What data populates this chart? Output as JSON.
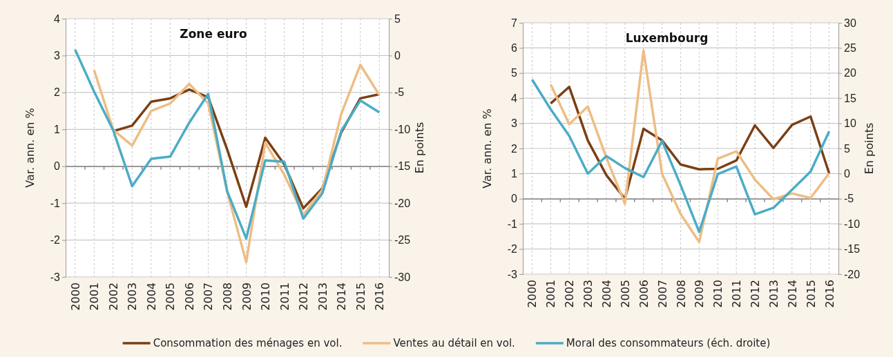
{
  "chart_data": [
    {
      "type": "line",
      "title": "Zone euro",
      "ylabel": "Var. ann. en %",
      "y2label": "En points",
      "categories": [
        "2000",
        "2001",
        "2002",
        "2003",
        "2004",
        "2005",
        "2006",
        "2007",
        "2008",
        "2009",
        "2010",
        "2011",
        "2012",
        "2013",
        "2014",
        "2015",
        "2016"
      ],
      "ylim": [
        -3,
        4
      ],
      "yticks": [
        -3,
        -2,
        -1,
        0,
        1,
        2,
        3,
        4
      ],
      "y2lim": [
        -30,
        5
      ],
      "y2ticks": [
        -30,
        -25,
        -20,
        -15,
        -10,
        -5,
        0,
        5
      ],
      "grid": true,
      "legend": "bottom",
      "line_style": "solid",
      "series": [
        {
          "name": "Consommation des ménages en vol.",
          "color": "#7b3f14",
          "values": [
            null,
            null,
            0.95,
            1.1,
            1.75,
            1.84,
            2.08,
            1.87,
            0.45,
            -1.1,
            0.77,
            0.05,
            -1.14,
            -0.6,
            0.92,
            1.84,
            1.95
          ]
        },
        {
          "name": "Ventes au détail en vol.",
          "color": "#eebd84",
          "values": [
            null,
            2.6,
            0.99,
            0.56,
            1.5,
            1.7,
            2.23,
            1.7,
            -0.7,
            -2.6,
            0.64,
            -0.23,
            -1.32,
            -0.64,
            1.42,
            2.75,
            1.93
          ]
        },
        {
          "name": "Moral des consommateurs (éch. droite)",
          "color": "#4bacc6",
          "axis": "y2",
          "values": [
            0.8,
            -4.9,
            -10.1,
            -17.7,
            -14,
            -13.7,
            -9.1,
            -5.2,
            -18.4,
            -24.8,
            -14.2,
            -14.4,
            -22.1,
            -18.7,
            -10.2,
            -6.1,
            -7.7
          ]
        }
      ]
    },
    {
      "type": "line",
      "title": "Luxembourg",
      "ylabel": "Var. ann. en %",
      "y2label": "En points",
      "categories": [
        "2000",
        "2001",
        "2002",
        "2003",
        "2004",
        "2005",
        "2006",
        "2007",
        "2008",
        "2009",
        "2010",
        "2011",
        "2012",
        "2013",
        "2014",
        "2015",
        "2016"
      ],
      "ylim": [
        -3,
        7
      ],
      "yticks": [
        -3,
        -2,
        -1,
        0,
        1,
        2,
        3,
        4,
        5,
        6,
        7
      ],
      "y2lim": [
        -20,
        30
      ],
      "y2ticks": [
        -20,
        -15,
        -10,
        -5,
        0,
        5,
        10,
        15,
        20,
        25,
        30
      ],
      "grid": true,
      "line_style": "solid",
      "series": [
        {
          "color": "#7b3f14",
          "values": [
            null,
            3.79,
            4.45,
            2.32,
            0.94,
            0,
            2.78,
            2.32,
            1.36,
            1.17,
            1.19,
            1.52,
            2.92,
            2.02,
            2.94,
            3.27,
            1.01
          ]
        },
        {
          "color": "#eebd84",
          "values": [
            null,
            4.55,
            2.96,
            3.67,
            1.63,
            -0.2,
            5.9,
            0.99,
            -0.61,
            -1.72,
            1.59,
            1.89,
            0.76,
            -0.02,
            0.21,
            0.03,
            1.01
          ]
        },
        {
          "color": "#4bacc6",
          "axis": "y2",
          "values": [
            18.7,
            12.8,
            7.5,
            0,
            3.5,
            1.1,
            -0.7,
            6.5,
            -2.3,
            -11.6,
            -0.1,
            1.4,
            -8.1,
            -6.8,
            -3.2,
            0.4,
            8.4
          ]
        }
      ]
    }
  ]
}
